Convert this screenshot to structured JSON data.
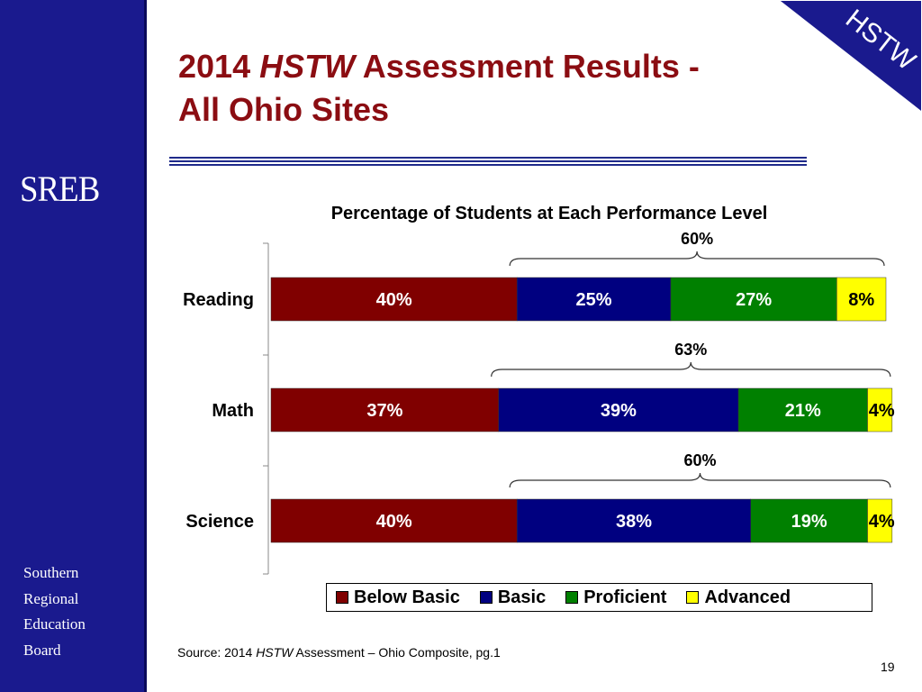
{
  "header": {
    "title_prefix": "2014",
    "title_italic": "HSTW",
    "title_suffix": "Assessment Results -",
    "title_line2": "All Ohio Sites",
    "corner_badge": "HSTW"
  },
  "sidebar": {
    "logo": "SREB",
    "org_lines": [
      "Southern",
      "Regional",
      "Education",
      "Board"
    ]
  },
  "footer": {
    "source_prefix": "Source: 2014",
    "source_italic": "HSTW",
    "source_suffix": "Assessment – Ohio Composite, pg.1",
    "page_number": "19"
  },
  "colors": {
    "sidebar": "#1a1a8e",
    "title": "#8b0d12",
    "below_basic": "#800000",
    "basic": "#000080",
    "proficient": "#008000",
    "advanced": "#ffff00"
  },
  "chart_data": {
    "type": "bar",
    "orientation": "horizontal",
    "stacked": true,
    "title": "Percentage of Students at Each Performance Level",
    "categories": [
      "Reading",
      "Math",
      "Science"
    ],
    "series": [
      {
        "name": "Below Basic",
        "values": [
          40,
          37,
          40
        ],
        "labels": [
          "40%",
          "37%",
          "40%"
        ],
        "color": "#800000",
        "label_color": "#ffffff"
      },
      {
        "name": "Basic",
        "values": [
          25,
          39,
          38
        ],
        "labels": [
          "25%",
          "39%",
          "38%"
        ],
        "color": "#000080",
        "label_color": "#ffffff"
      },
      {
        "name": "Proficient",
        "values": [
          27,
          21,
          19
        ],
        "labels": [
          "27%",
          "21%",
          "19%"
        ],
        "color": "#008000",
        "label_color": "#ffffff"
      },
      {
        "name": "Advanced",
        "values": [
          8,
          4,
          4
        ],
        "labels": [
          "8%",
          "4%",
          "4%"
        ],
        "color": "#ffff00",
        "label_color": "#000000"
      }
    ],
    "bracket_labels": [
      "60%",
      "63%",
      "60%"
    ],
    "xlim": [
      0,
      100
    ],
    "legend_position": "bottom"
  }
}
